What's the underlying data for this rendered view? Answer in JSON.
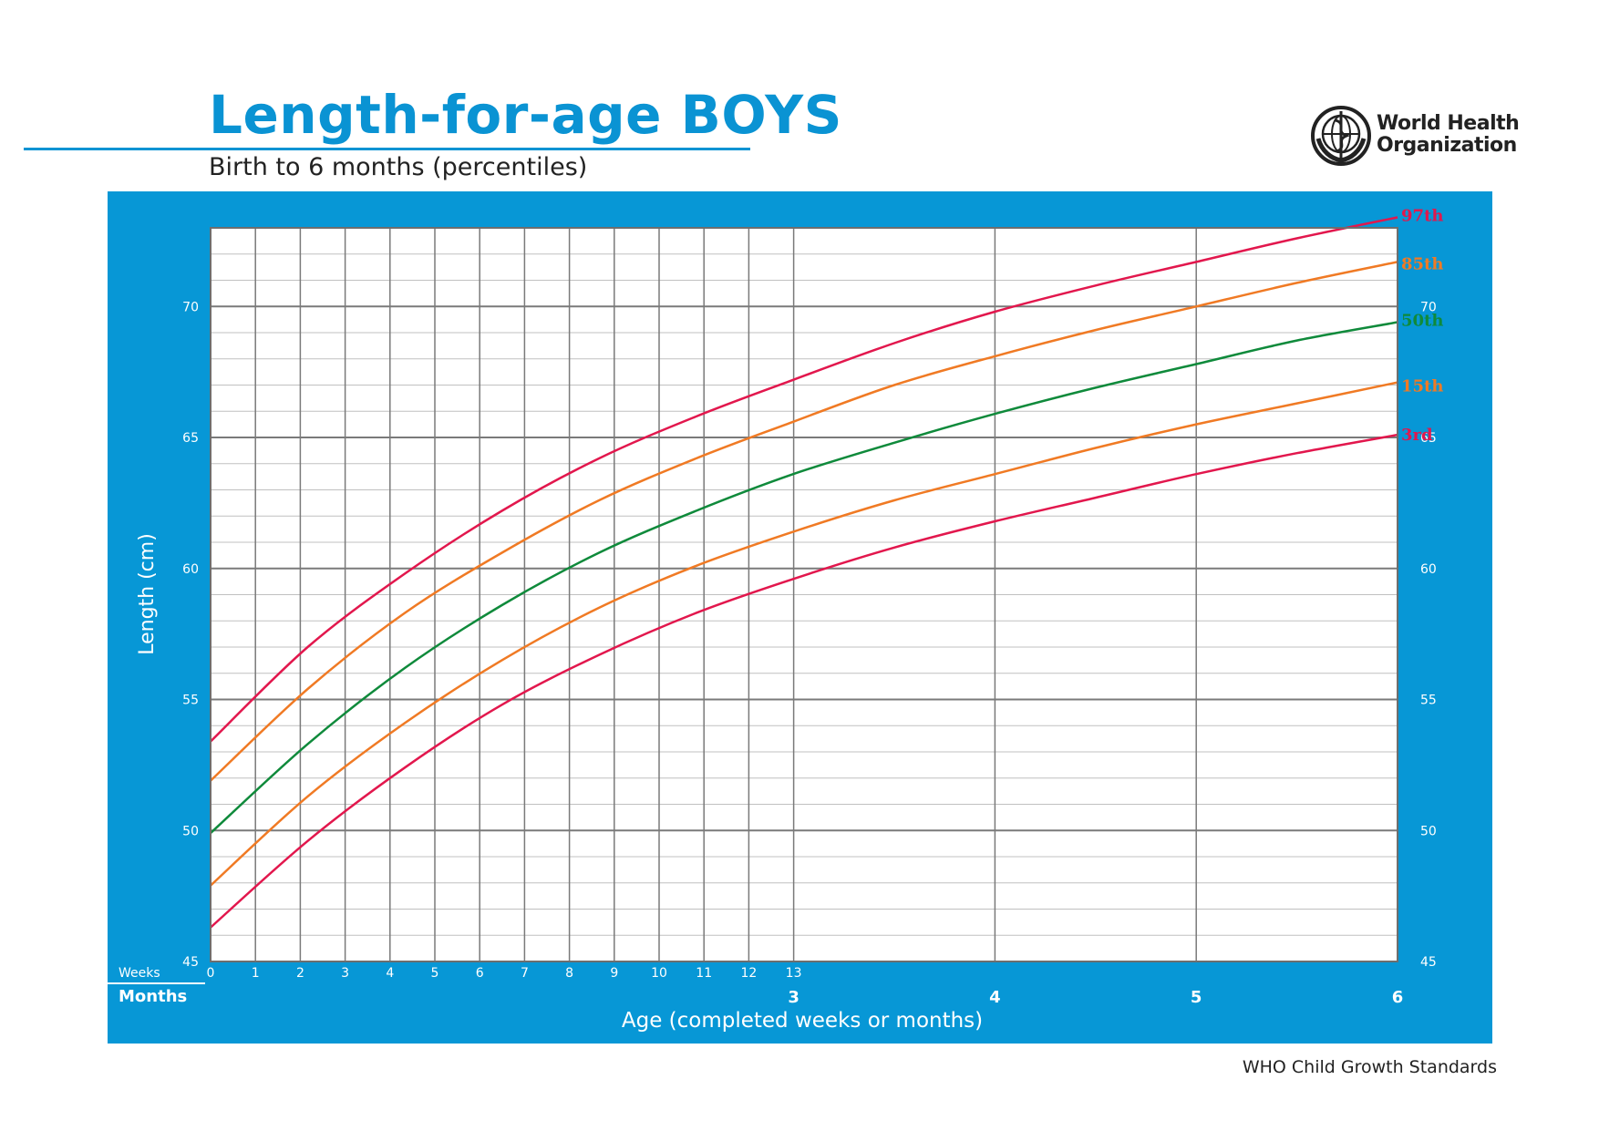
{
  "header": {
    "title": "Length-for-age BOYS",
    "subtitle": "Birth to 6 months (percentiles)",
    "logo_text_line1": "World Health",
    "logo_text_line2": "Organization",
    "logo_icon": "who-emblem-icon"
  },
  "footer": {
    "text": "WHO Child Growth Standards"
  },
  "colors": {
    "panel": "#0797d6",
    "grid_major": "#7a7a7a",
    "grid_minor": "#c0c0c0",
    "red": "#e2174d",
    "orange": "#f07a24",
    "green": "#0f8a3b"
  },
  "chart_data": {
    "type": "line",
    "ylabel": "Length (cm)",
    "xlabel": "Age (completed weeks or months)",
    "weeks_label": "Weeks",
    "months_label": "Months",
    "ylim": [
      45,
      73
    ],
    "y_ticks": [
      45,
      50,
      55,
      60,
      65,
      70
    ],
    "week_ticks": [
      "0",
      "1",
      "2",
      "3",
      "4",
      "5",
      "6",
      "7",
      "8",
      "9",
      "10",
      "11",
      "12",
      "13"
    ],
    "month_ticks": [
      "3",
      "4",
      "5",
      "6"
    ],
    "x_unit": "months",
    "x": [
      0,
      0.5,
      1,
      1.5,
      2,
      2.5,
      3,
      3.5,
      4,
      4.5,
      5,
      5.5,
      6
    ],
    "grid": true,
    "series": [
      {
        "name": "97th",
        "color": "red",
        "values": [
          53.4,
          57.0,
          59.8,
          62.2,
          64.2,
          65.8,
          67.2,
          68.6,
          69.8,
          70.8,
          71.7,
          72.6,
          73.4
        ]
      },
      {
        "name": "85th",
        "color": "orange",
        "values": [
          51.9,
          55.4,
          58.3,
          60.6,
          62.6,
          64.2,
          65.6,
          67.0,
          68.1,
          69.1,
          70.0,
          70.9,
          71.7
        ]
      },
      {
        "name": "50th",
        "color": "green",
        "values": [
          49.9,
          53.3,
          56.2,
          58.6,
          60.6,
          62.2,
          63.6,
          64.8,
          65.9,
          66.9,
          67.8,
          68.7,
          69.4
        ]
      },
      {
        "name": "15th",
        "color": "orange",
        "values": [
          47.9,
          51.3,
          54.1,
          56.5,
          58.5,
          60.1,
          61.4,
          62.6,
          63.6,
          64.6,
          65.5,
          66.3,
          67.1
        ]
      },
      {
        "name": "3rd",
        "color": "red",
        "values": [
          46.3,
          49.6,
          52.4,
          54.8,
          56.7,
          58.3,
          59.6,
          60.8,
          61.8,
          62.7,
          63.6,
          64.4,
          65.1
        ]
      }
    ]
  }
}
